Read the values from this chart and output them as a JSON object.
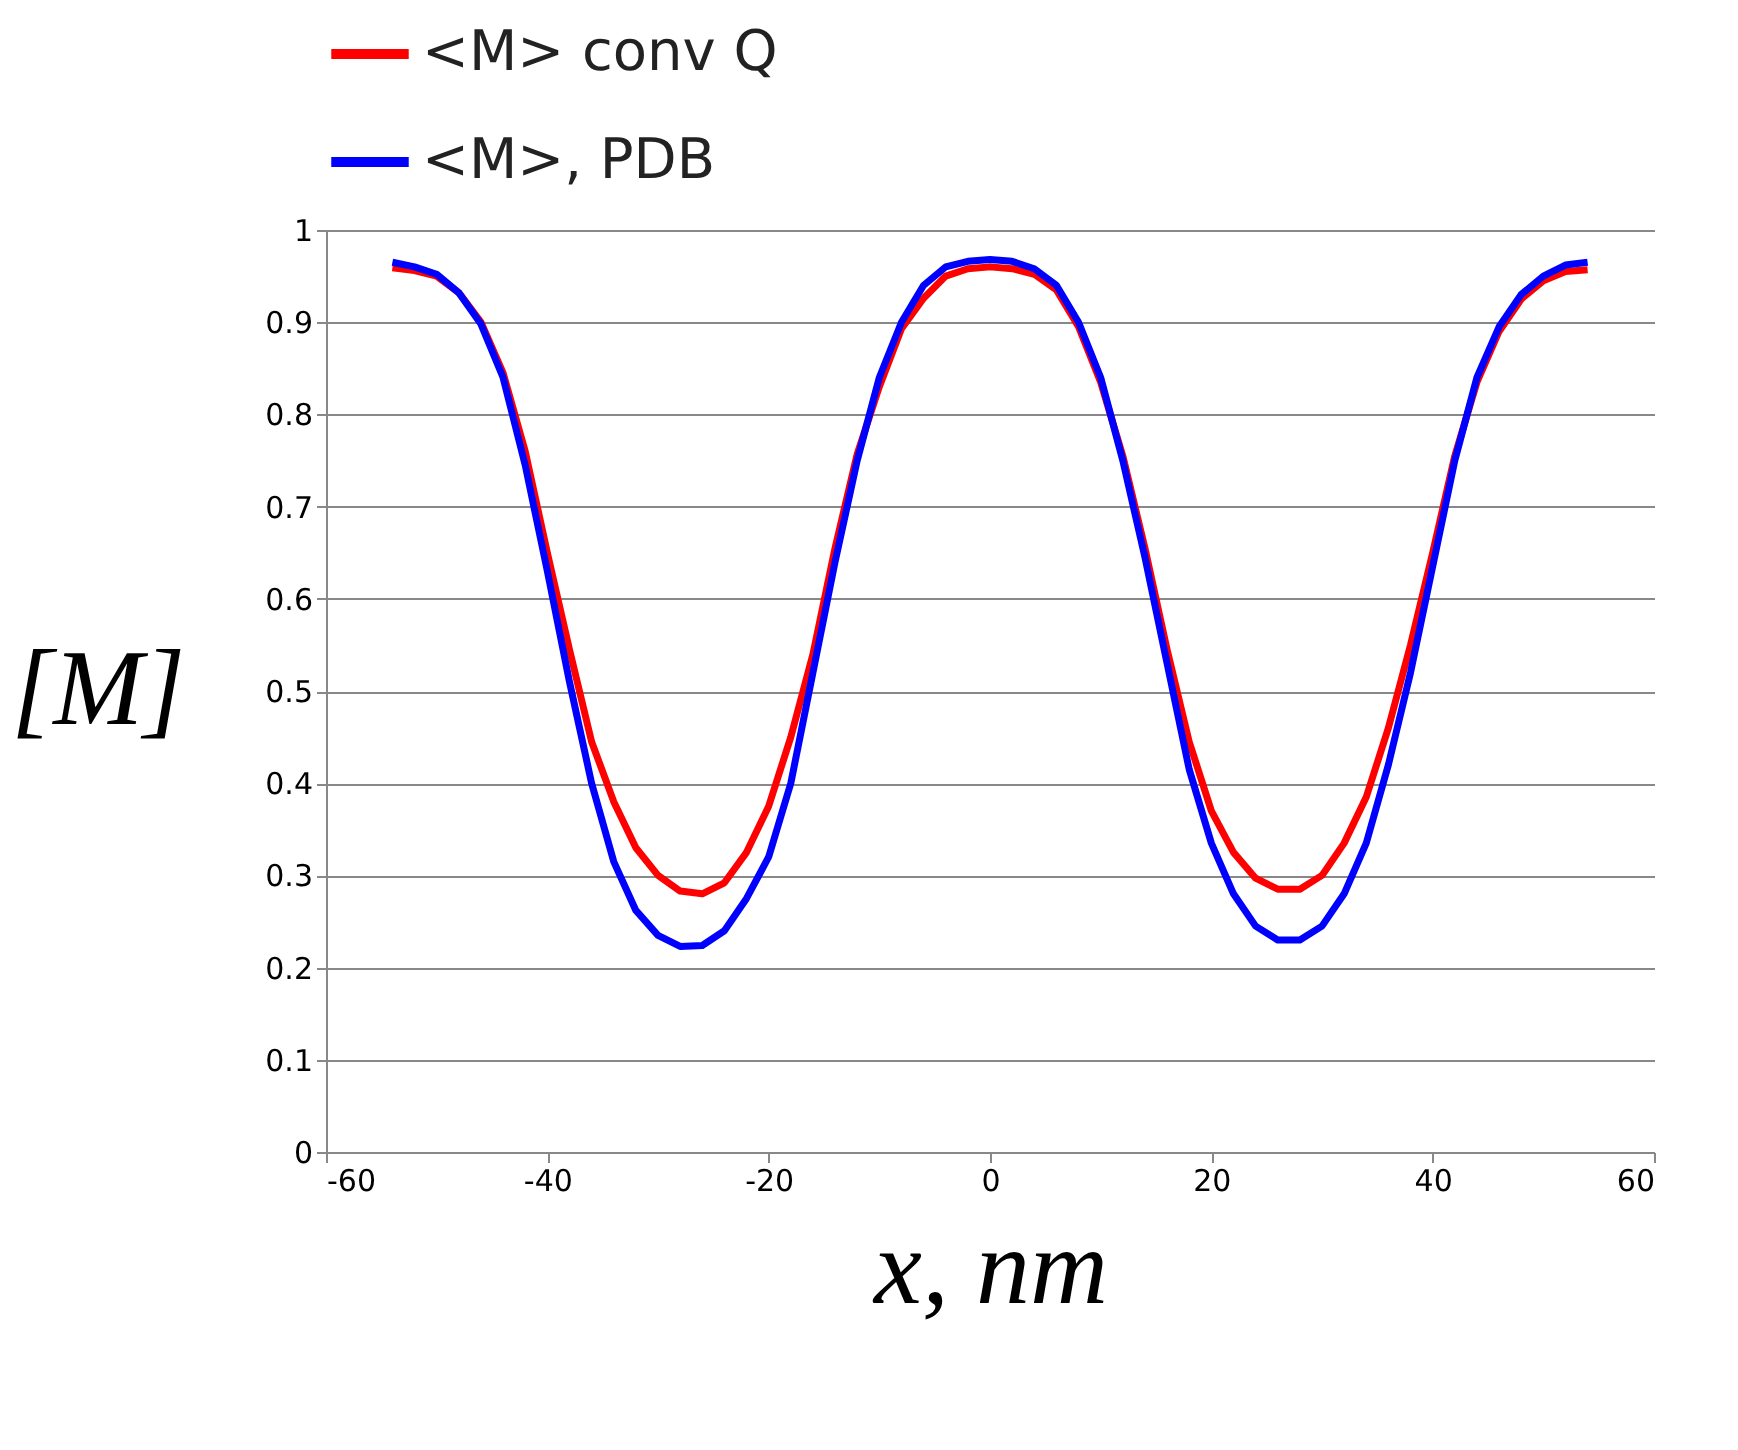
{
  "chart_data": {
    "type": "line",
    "xlabel": "x, nm",
    "ylabel": "[M]",
    "x": [
      -54,
      -52,
      -50,
      -48,
      -46,
      -44,
      -42,
      -40,
      -38,
      -36,
      -34,
      -32,
      -30,
      -28,
      -26,
      -24,
      -22,
      -20,
      -18,
      -16,
      -14,
      -12,
      -10,
      -8,
      -6,
      -4,
      -2,
      0,
      2,
      4,
      6,
      8,
      10,
      12,
      14,
      16,
      18,
      20,
      22,
      24,
      26,
      28,
      30,
      32,
      34,
      36,
      38,
      40,
      42,
      44,
      46,
      48,
      50,
      52,
      54
    ],
    "series": [
      {
        "name": "<M> conv Q",
        "color": "#ff0000",
        "values": [
          0.959,
          0.956,
          0.95,
          0.932,
          0.9,
          0.845,
          0.76,
          0.65,
          0.545,
          0.445,
          0.38,
          0.33,
          0.3,
          0.283,
          0.28,
          0.292,
          0.325,
          0.375,
          0.45,
          0.54,
          0.655,
          0.757,
          0.83,
          0.893,
          0.926,
          0.95,
          0.958,
          0.96,
          0.958,
          0.952,
          0.935,
          0.895,
          0.835,
          0.755,
          0.655,
          0.545,
          0.445,
          0.37,
          0.325,
          0.297,
          0.285,
          0.285,
          0.3,
          0.335,
          0.385,
          0.46,
          0.55,
          0.65,
          0.755,
          0.835,
          0.89,
          0.925,
          0.945,
          0.955,
          0.957
        ]
      },
      {
        "name": "<M>, PDB",
        "color": "#0000ff",
        "values": [
          0.965,
          0.96,
          0.952,
          0.932,
          0.898,
          0.84,
          0.745,
          0.63,
          0.51,
          0.4,
          0.315,
          0.262,
          0.235,
          0.223,
          0.224,
          0.24,
          0.275,
          0.32,
          0.4,
          0.52,
          0.64,
          0.75,
          0.84,
          0.9,
          0.94,
          0.96,
          0.966,
          0.968,
          0.966,
          0.958,
          0.94,
          0.9,
          0.84,
          0.75,
          0.645,
          0.53,
          0.415,
          0.335,
          0.28,
          0.245,
          0.23,
          0.23,
          0.245,
          0.28,
          0.335,
          0.42,
          0.52,
          0.635,
          0.75,
          0.84,
          0.895,
          0.93,
          0.95,
          0.962,
          0.965
        ]
      }
    ],
    "xlim": [
      -60,
      60
    ],
    "xticks": [
      -60,
      -40,
      -20,
      0,
      20,
      40,
      60
    ],
    "ylim": [
      0,
      1
    ],
    "yticks": [
      0,
      0.1,
      0.2,
      0.3,
      0.4,
      0.5,
      0.6,
      0.7,
      0.8,
      0.9,
      1
    ],
    "grid": "y",
    "legend": "top",
    "marker": "none",
    "line_style": "solid"
  }
}
